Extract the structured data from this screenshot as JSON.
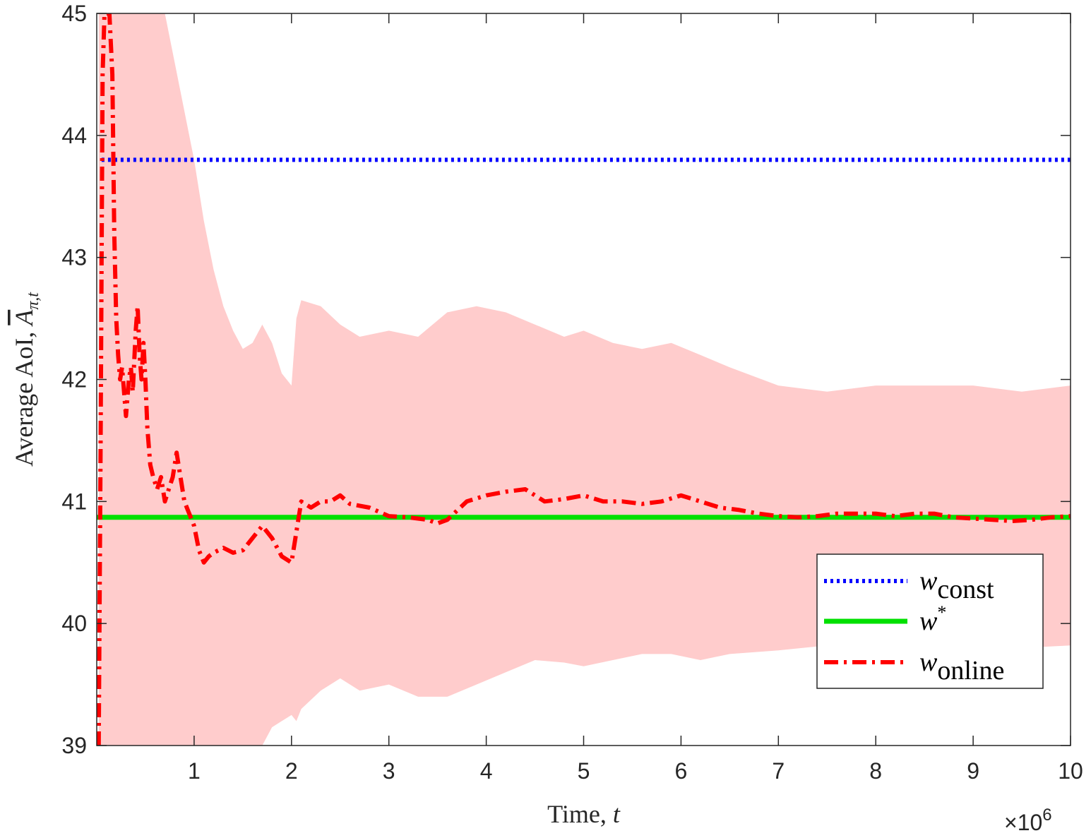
{
  "chart_data": {
    "type": "line",
    "xlabel_text": "Time, ",
    "xlabel_var": "t",
    "ylabel_text": "Average AoI, ",
    "ylabel_var": "A",
    "ylabel_sub": "π,t",
    "x_multiplier_base": "×10",
    "x_multiplier_exp": "6",
    "xlim": [
      0,
      10
    ],
    "ylim": [
      39,
      45
    ],
    "xticks": [
      1,
      2,
      3,
      4,
      5,
      6,
      7,
      8,
      9,
      10
    ],
    "yticks": [
      39,
      40,
      41,
      42,
      43,
      44,
      45
    ],
    "grid": false,
    "legend_position": "bottom-right",
    "series": [
      {
        "name_base": "w",
        "name_sub": "const",
        "name_sup": "",
        "style": "dotted",
        "color": "#0000ff",
        "x": [
          0.05,
          10
        ],
        "y": [
          43.8,
          43.8
        ]
      },
      {
        "name_base": "w",
        "name_sub": "",
        "name_sup": "*",
        "style": "solid",
        "color": "#00e000",
        "x": [
          0,
          10
        ],
        "y": [
          40.87,
          40.87
        ]
      },
      {
        "name_base": "w",
        "name_sub": "online",
        "name_sup": "",
        "style": "dashdot",
        "color": "#ff0000",
        "x": [
          0.02,
          0.04,
          0.06,
          0.08,
          0.1,
          0.13,
          0.16,
          0.18,
          0.2,
          0.22,
          0.24,
          0.26,
          0.3,
          0.33,
          0.35,
          0.37,
          0.4,
          0.42,
          0.44,
          0.46,
          0.48,
          0.5,
          0.52,
          0.55,
          0.58,
          0.62,
          0.66,
          0.7,
          0.74,
          0.78,
          0.82,
          0.86,
          0.9,
          0.95,
          1.0,
          1.05,
          1.1,
          1.15,
          1.2,
          1.25,
          1.3,
          1.4,
          1.5,
          1.6,
          1.7,
          1.75,
          1.8,
          1.9,
          2.0,
          2.05,
          2.1,
          2.2,
          2.3,
          2.4,
          2.5,
          2.6,
          2.8,
          3.0,
          3.2,
          3.4,
          3.5,
          3.6,
          3.8,
          4.0,
          4.2,
          4.4,
          4.6,
          4.8,
          5.0,
          5.2,
          5.4,
          5.6,
          5.8,
          6.0,
          6.2,
          6.4,
          6.6,
          6.8,
          7.0,
          7.2,
          7.4,
          7.6,
          7.8,
          8.0,
          8.2,
          8.4,
          8.6,
          8.8,
          9.0,
          9.2,
          9.4,
          9.6,
          9.8,
          10.0
        ],
        "y": [
          39.0,
          41.5,
          44.5,
          45.0,
          45.0,
          45.0,
          44.5,
          43.2,
          42.5,
          42.2,
          42.0,
          42.1,
          41.7,
          42.0,
          42.1,
          41.9,
          42.4,
          42.6,
          42.2,
          42.0,
          42.3,
          42.0,
          41.6,
          41.3,
          41.2,
          41.1,
          41.2,
          41.0,
          41.1,
          41.2,
          41.4,
          41.2,
          41.0,
          40.9,
          40.8,
          40.6,
          40.5,
          40.55,
          40.58,
          40.6,
          40.62,
          40.58,
          40.6,
          40.7,
          40.8,
          40.75,
          40.7,
          40.55,
          40.5,
          40.75,
          41.0,
          40.95,
          41.0,
          41.0,
          41.05,
          40.98,
          40.95,
          40.88,
          40.87,
          40.85,
          40.82,
          40.85,
          41.0,
          41.05,
          41.08,
          41.1,
          41.0,
          41.02,
          41.05,
          41.0,
          41.0,
          40.98,
          41.0,
          41.05,
          41.0,
          40.95,
          40.93,
          40.9,
          40.88,
          40.87,
          40.88,
          40.9,
          40.9,
          40.9,
          40.88,
          40.9,
          40.9,
          40.87,
          40.86,
          40.85,
          40.84,
          40.85,
          40.87,
          40.88
        ]
      }
    ],
    "band": {
      "color": "#ffcccc",
      "x": [
        0.02,
        0.1,
        0.2,
        0.3,
        0.4,
        0.5,
        0.6,
        0.7,
        0.8,
        0.9,
        1.0,
        1.1,
        1.2,
        1.3,
        1.4,
        1.5,
        1.6,
        1.7,
        1.8,
        1.9,
        2.0,
        2.05,
        2.1,
        2.3,
        2.5,
        2.7,
        3.0,
        3.3,
        3.6,
        3.9,
        4.2,
        4.5,
        4.8,
        5.0,
        5.3,
        5.6,
        5.9,
        6.2,
        6.5,
        7.0,
        7.5,
        8.0,
        8.5,
        9.0,
        9.5,
        10.0
      ],
      "upper": [
        45.0,
        45.0,
        45.0,
        45.0,
        45.0,
        45.0,
        45.0,
        45.0,
        44.6,
        44.2,
        43.8,
        43.3,
        42.9,
        42.6,
        42.4,
        42.25,
        42.3,
        42.45,
        42.3,
        42.05,
        41.95,
        42.5,
        42.65,
        42.6,
        42.45,
        42.35,
        42.4,
        42.35,
        42.55,
        42.6,
        42.55,
        42.45,
        42.35,
        42.4,
        42.3,
        42.25,
        42.3,
        42.2,
        42.1,
        41.95,
        41.9,
        41.95,
        41.95,
        41.95,
        41.9,
        41.95
      ],
      "lower": [
        39.0,
        39.0,
        39.0,
        39.0,
        39.0,
        39.0,
        39.0,
        39.0,
        39.0,
        39.0,
        39.0,
        39.0,
        39.0,
        39.0,
        39.0,
        39.0,
        39.0,
        39.0,
        39.15,
        39.2,
        39.25,
        39.2,
        39.3,
        39.45,
        39.55,
        39.45,
        39.5,
        39.4,
        39.4,
        39.5,
        39.6,
        39.7,
        39.68,
        39.65,
        39.7,
        39.75,
        39.75,
        39.7,
        39.75,
        39.78,
        39.82,
        39.8,
        39.8,
        39.8,
        39.8,
        39.82
      ]
    }
  }
}
